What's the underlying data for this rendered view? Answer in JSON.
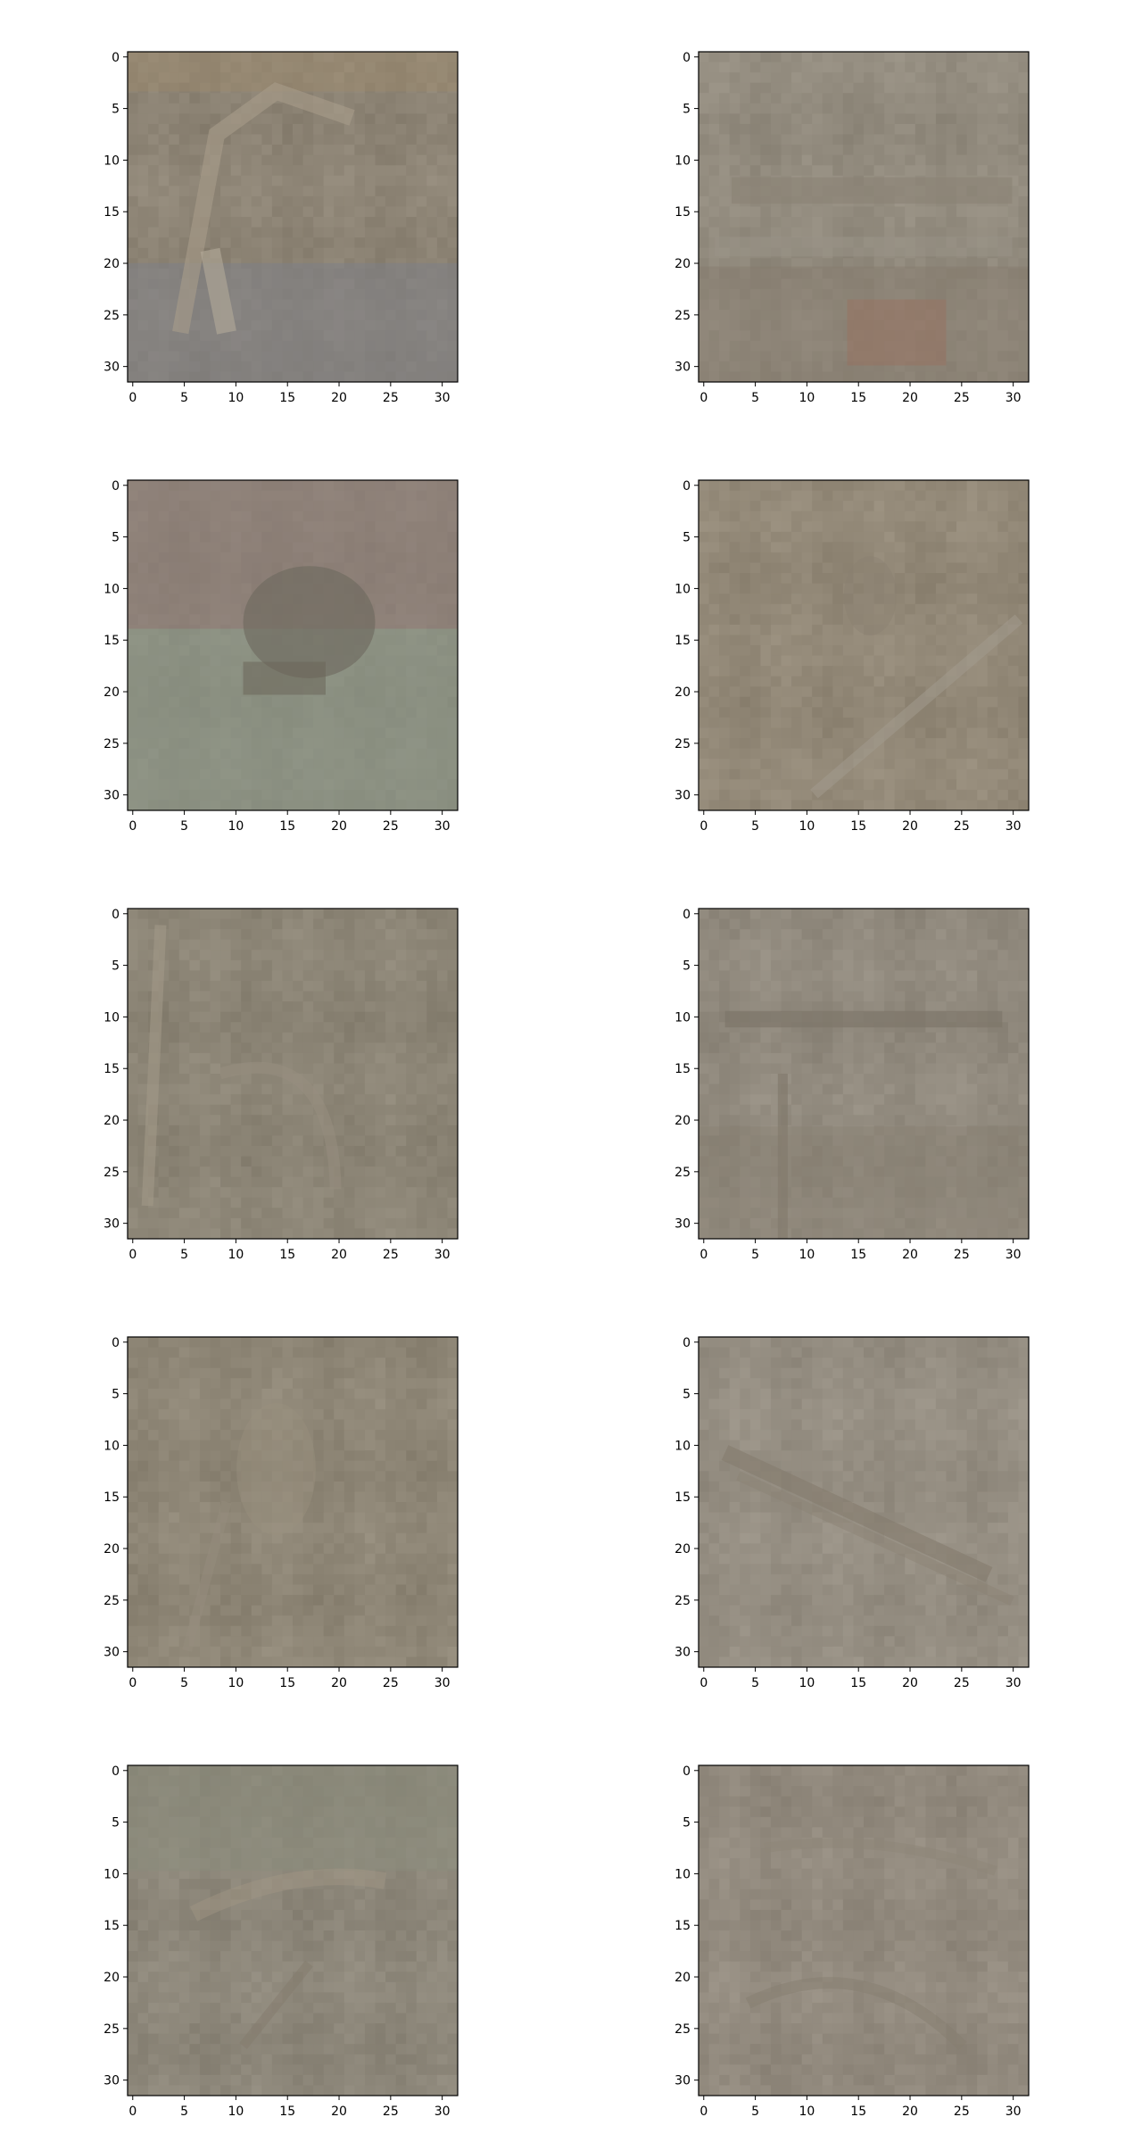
{
  "chart_data": [
    {
      "type": "heatmap",
      "image_size": [
        32,
        32
      ],
      "xticks": [
        "0",
        "5",
        "10",
        "15",
        "20",
        "25",
        "30"
      ],
      "yticks": [
        "0",
        "5",
        "10",
        "15",
        "20",
        "25",
        "30"
      ],
      "xlim": [
        -0.5,
        31.5
      ],
      "ylim": [
        31.5,
        -0.5
      ],
      "dominant_color": "#8d8475",
      "content": "blurry reconstruction: figure with raised arm over grey-blue ground"
    },
    {
      "type": "heatmap",
      "image_size": [
        32,
        32
      ],
      "xticks": [
        "0",
        "5",
        "10",
        "15",
        "20",
        "25",
        "30"
      ],
      "yticks": [
        "0",
        "5",
        "10",
        "15",
        "20",
        "25",
        "30"
      ],
      "xlim": [
        -0.5,
        31.5
      ],
      "ylim": [
        31.5,
        -0.5
      ],
      "dominant_color": "#928b7e",
      "content": "blurry reconstruction: ship or vehicle outline with reddish patch lower right"
    },
    {
      "type": "heatmap",
      "image_size": [
        32,
        32
      ],
      "xticks": [
        "0",
        "5",
        "10",
        "15",
        "20",
        "25",
        "30"
      ],
      "yticks": [
        "0",
        "5",
        "10",
        "15",
        "20",
        "25",
        "30"
      ],
      "xlim": [
        -0.5,
        31.5
      ],
      "ylim": [
        31.5,
        -0.5
      ],
      "dominant_color": "#8a8a7c",
      "content": "blurry reconstruction: dark animal on greenish ground, pinkish background top"
    },
    {
      "type": "heatmap",
      "image_size": [
        32,
        32
      ],
      "xticks": [
        "0",
        "5",
        "10",
        "15",
        "20",
        "25",
        "30"
      ],
      "yticks": [
        "0",
        "5",
        "10",
        "15",
        "20",
        "25",
        "30"
      ],
      "xlim": [
        -0.5,
        31.5
      ],
      "ylim": [
        31.5,
        -0.5
      ],
      "dominant_color": "#928877",
      "content": "blurry reconstruction: faint bird shape with diagonal line"
    },
    {
      "type": "heatmap",
      "image_size": [
        32,
        32
      ],
      "xticks": [
        "0",
        "5",
        "10",
        "15",
        "20",
        "25",
        "30"
      ],
      "yticks": [
        "0",
        "5",
        "10",
        "15",
        "20",
        "25",
        "30"
      ],
      "xlim": [
        -0.5,
        31.5
      ],
      "ylim": [
        31.5,
        -0.5
      ],
      "dominant_color": "#8c8576",
      "content": "blurry reconstruction: faint V-shaped form"
    },
    {
      "type": "heatmap",
      "image_size": [
        32,
        32
      ],
      "xticks": [
        "0",
        "5",
        "10",
        "15",
        "20",
        "25",
        "30"
      ],
      "yticks": [
        "0",
        "5",
        "10",
        "15",
        "20",
        "25",
        "30"
      ],
      "xlim": [
        -0.5,
        31.5
      ],
      "ylim": [
        31.5,
        -0.5
      ],
      "dominant_color": "#918a7e",
      "content": "blurry reconstruction: airplane silhouette with vertical post"
    },
    {
      "type": "heatmap",
      "image_size": [
        32,
        32
      ],
      "xticks": [
        "0",
        "5",
        "10",
        "15",
        "20",
        "25",
        "30"
      ],
      "yticks": [
        "0",
        "5",
        "10",
        "15",
        "20",
        "25",
        "30"
      ],
      "xlim": [
        -0.5,
        31.5
      ],
      "ylim": [
        31.5,
        -0.5
      ],
      "dominant_color": "#8e8676",
      "content": "blurry reconstruction: faint standing bird shape"
    },
    {
      "type": "heatmap",
      "image_size": [
        32,
        32
      ],
      "xticks": [
        "0",
        "5",
        "10",
        "15",
        "20",
        "25",
        "30"
      ],
      "yticks": [
        "0",
        "5",
        "10",
        "15",
        "20",
        "25",
        "30"
      ],
      "xlim": [
        -0.5,
        31.5
      ],
      "ylim": [
        31.5,
        -0.5
      ],
      "dominant_color": "#958e82",
      "content": "blurry reconstruction: diagonal airplane or boat shape"
    },
    {
      "type": "heatmap",
      "image_size": [
        32,
        32
      ],
      "xticks": [
        "0",
        "5",
        "10",
        "15",
        "20",
        "25",
        "30"
      ],
      "yticks": [
        "0",
        "5",
        "10",
        "15",
        "20",
        "25",
        "30"
      ],
      "xlim": [
        -0.5,
        31.5
      ],
      "ylim": [
        31.5,
        -0.5
      ],
      "dominant_color": "#8d877a",
      "content": "blurry reconstruction: faint textured animal, greenish top"
    },
    {
      "type": "heatmap",
      "image_size": [
        32,
        32
      ],
      "xticks": [
        "0",
        "5",
        "10",
        "15",
        "20",
        "25",
        "30"
      ],
      "yticks": [
        "0",
        "5",
        "10",
        "15",
        "20",
        "25",
        "30"
      ],
      "xlim": [
        -0.5,
        31.5
      ],
      "ylim": [
        31.5,
        -0.5
      ],
      "dominant_color": "#928a7e",
      "content": "blurry reconstruction: faint curved shapes"
    }
  ]
}
